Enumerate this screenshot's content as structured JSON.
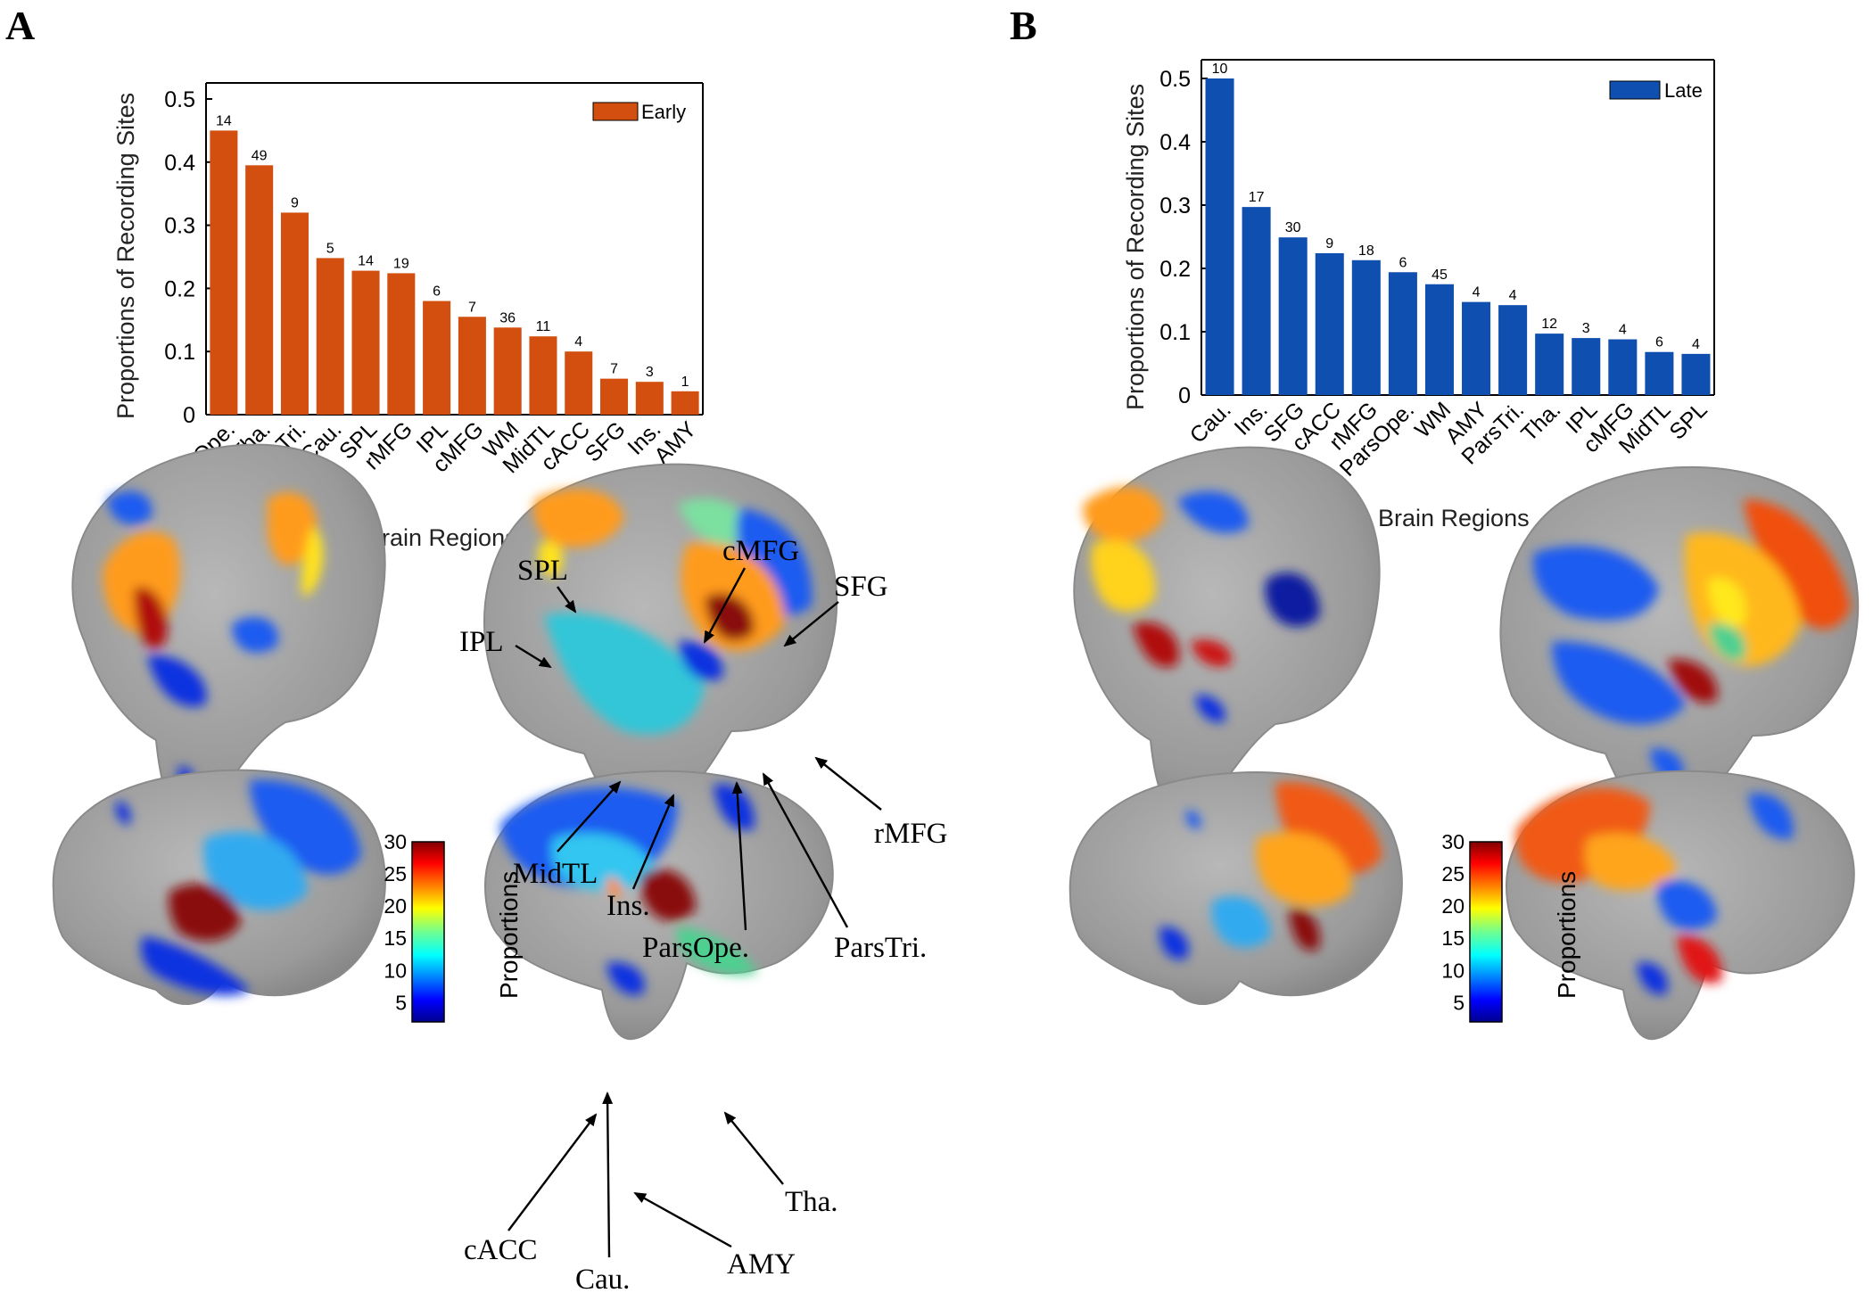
{
  "chart_data": [
    {
      "panel": "A",
      "type": "bar",
      "legend": "Early",
      "color": "#d24f0f",
      "ylabel": "Proportions of Recording Sites",
      "xlabel": "Brain Regions",
      "ylim": [
        0,
        0.5
      ],
      "yticks": [
        "0",
        "0.1",
        "0.2",
        "0.3",
        "0.4",
        "0.5"
      ],
      "categories": [
        "ParsOpe.",
        "Tha.",
        "ParsTri.",
        "Cau.",
        "SPL",
        "rMFG",
        "IPL",
        "cMFG",
        "WM",
        "MidTL",
        "cACC",
        "SFG",
        "Ins.",
        "AMY"
      ],
      "values": [
        0.45,
        0.395,
        0.32,
        0.248,
        0.228,
        0.224,
        0.18,
        0.155,
        0.138,
        0.124,
        0.1,
        0.057,
        0.052,
        0.037
      ],
      "counts": [
        "14",
        "49",
        "9",
        "5",
        "14",
        "19",
        "6",
        "7",
        "36",
        "11",
        "4",
        "7",
        "3",
        "1"
      ]
    },
    {
      "panel": "B",
      "type": "bar",
      "legend": "Late",
      "color": "#0f4fb0",
      "ylabel": "Proportions of Recording Sites",
      "xlabel": "Brain Regions",
      "ylim": [
        0,
        0.5
      ],
      "yticks": [
        "0",
        "0.1",
        "0.2",
        "0.3",
        "0.4",
        "0.5"
      ],
      "categories": [
        "Cau.",
        "Ins.",
        "SFG",
        "cACC",
        "rMFG",
        "ParsOpe.",
        "WM",
        "AMY",
        "ParsTri.",
        "Tha.",
        "IPL",
        "cMFG",
        "MidTL",
        "SPL"
      ],
      "values": [
        0.5,
        0.297,
        0.249,
        0.224,
        0.213,
        0.194,
        0.175,
        0.147,
        0.142,
        0.097,
        0.09,
        0.088,
        0.068,
        0.065
      ],
      "counts": [
        "10",
        "17",
        "30",
        "9",
        "18",
        "6",
        "45",
        "4",
        "4",
        "12",
        "3",
        "4",
        "6",
        "4"
      ]
    }
  ],
  "panels": {
    "a_letter": "A",
    "b_letter": "B"
  },
  "colorbar": {
    "title": "Proportions",
    "ticks": [
      "30",
      "25",
      "20",
      "15",
      "10",
      "5"
    ]
  },
  "brain_labels": {
    "spl": "SPL",
    "ipl": "IPL",
    "cmfg": "cMFG",
    "sfg": "SFG",
    "midtl": "MidTL",
    "ins": "Ins.",
    "parsope": "ParsOpe.",
    "parstri": "ParsTri.",
    "rmfg": "rMFG",
    "cacc": "cACC",
    "cau": "Cau.",
    "amy": "AMY",
    "tha": "Tha."
  }
}
